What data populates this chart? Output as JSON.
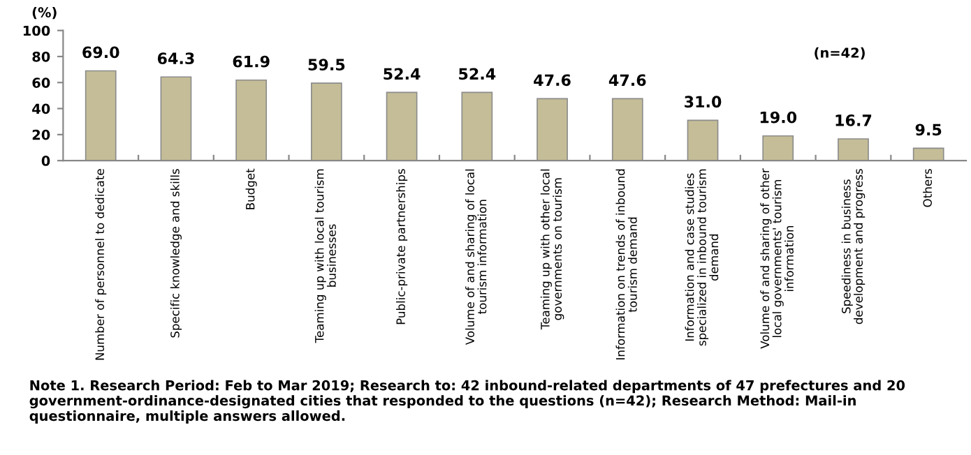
{
  "chart_data": {
    "type": "bar",
    "ylabel": "(%)",
    "categories": [
      "Number of personnel to dedicate",
      "Specific knowledge and skills",
      "Budget",
      "Teaming up with local tourism\nbusinesses",
      "Public-private partnerships",
      "Volume of and sharing of local\ntourism information",
      "Teaming up with other local\ngovernments on tourism",
      "Information on trends of inbound\ntourism demand",
      "Information and case studies\nspecialized in inbound tourism\ndemand",
      "Volume of and sharing of other\nlocal governments' tourism\ninformation",
      "Speediness in business\ndevelopment and progress",
      "Others"
    ],
    "values": [
      69.0,
      64.3,
      61.9,
      59.5,
      52.4,
      52.4,
      47.6,
      47.6,
      31.0,
      19.0,
      16.7,
      9.5
    ],
    "color": "#c4bd97",
    "ylim": [
      0,
      100
    ],
    "yticks": [
      0,
      20,
      40,
      60,
      80,
      100
    ],
    "value_labels": [
      "69.0",
      "64.3",
      "61.9",
      "59.5",
      "52.4",
      "52.4",
      "47.6",
      "47.6",
      "31.0",
      "19.0",
      "16.7",
      "9.5"
    ],
    "grid": false,
    "legend": false,
    "annotations": [
      "(n=42)",
      "Note 1. Research Period: Feb to Mar 2019; Research to: 42 inbound-related departments of 47 prefectures and 20 government-ordinance-designated cities that responded to the questions (n=42); Research Method: Mail-in questionnaire, multiple answers allowed."
    ]
  }
}
